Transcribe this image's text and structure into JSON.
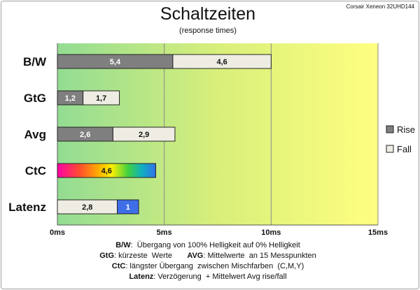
{
  "chart_data": {
    "type": "bar",
    "orientation": "horizontal",
    "stacked": true,
    "title": "Schaltzeiten",
    "subtitle": "(response times)",
    "corner_label": "Corsair Xeneon 32UHD144",
    "categories": [
      "B/W",
      "GtG",
      "Avg",
      "CtC",
      "Latenz"
    ],
    "series": [
      {
        "name": "Rise",
        "values": [
          5.4,
          1.2,
          2.6,
          null,
          null
        ],
        "labels": [
          "5,4",
          "1,2",
          "2,6",
          "",
          ""
        ],
        "color": "#7f7f7f"
      },
      {
        "name": "Fall",
        "values": [
          4.6,
          1.7,
          2.9,
          null,
          2.8
        ],
        "labels": [
          "4,6",
          "1,7",
          "2,9",
          "",
          "2,8"
        ],
        "color": "#efede3"
      },
      {
        "name": "",
        "values": [
          null,
          null,
          null,
          4.6,
          null
        ],
        "labels": [
          "",
          "",
          "",
          "4,6",
          ""
        ],
        "color": "rainbow"
      },
      {
        "name": "",
        "values": [
          null,
          null,
          null,
          null,
          1
        ],
        "labels": [
          "",
          "",
          "",
          "",
          "1"
        ],
        "color": "#3f6fe8"
      }
    ],
    "xlim": [
      0,
      15
    ],
    "xticks": [
      0,
      5,
      10,
      15
    ],
    "xtick_labels": [
      "0ms",
      "5ms",
      "10ms",
      "15ms"
    ],
    "grid": true,
    "legend_position": "right",
    "legend": [
      "Rise",
      "Fall"
    ],
    "background_gradient": [
      "#93dc93",
      "#d8ef7a",
      "#ffff80"
    ],
    "footnotes": [
      [
        {
          "b": "B/W",
          "t": ":  Übergang von 100% Helligkeit auf 0% Helligkeit"
        }
      ],
      [
        {
          "b": "GtG",
          "t": ": kürzeste  Werte       "
        },
        {
          "b": "AVG",
          "t": ": Mittelwerte  an 15 Messpunkten"
        }
      ],
      [
        {
          "b": "CtC",
          "t": ": längster Übergang  zwischen Mischfarben  (C,M,Y)"
        }
      ],
      [
        {
          "b": "Latenz",
          "t": ": Verzögerung  + Mittelwert Avg rise/fall"
        }
      ]
    ]
  }
}
